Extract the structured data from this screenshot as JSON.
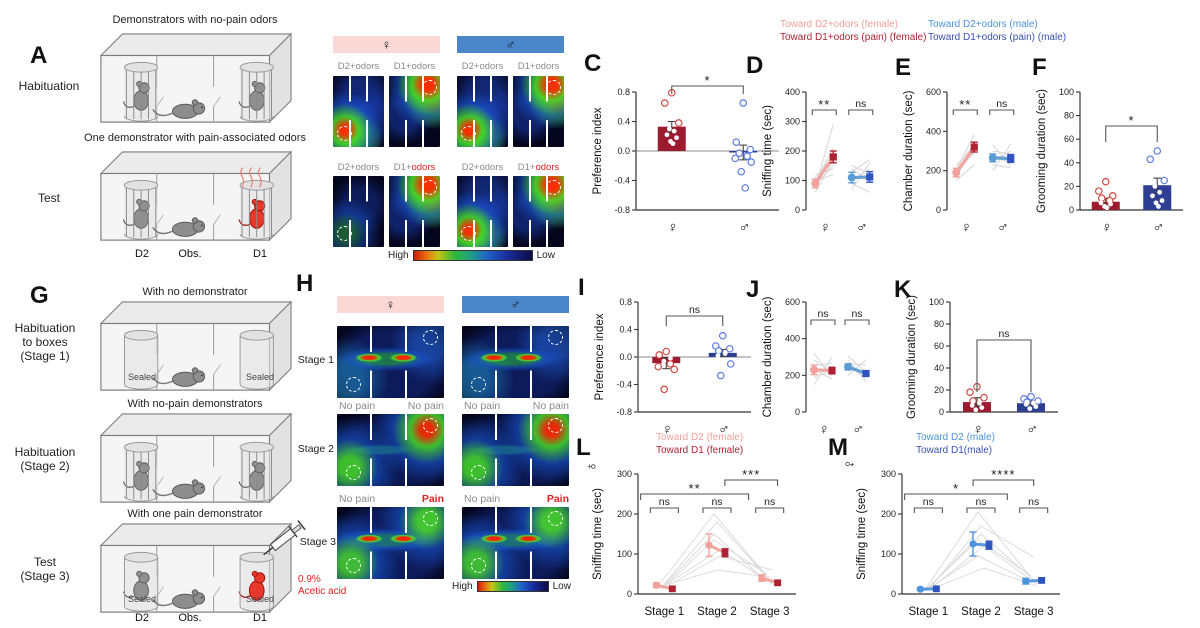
{
  "letters": {
    "A": "A",
    "B": "B",
    "C": "C",
    "D": "D",
    "E": "E",
    "F": "F",
    "G": "G",
    "H": "H",
    "I": "I",
    "J": "J",
    "K": "K",
    "L": "L",
    "M": "M"
  },
  "panelA": {
    "caption_top": "Demonstrators with no-pain odors",
    "label_top": "Habituation",
    "caption_bottom": "One demonstrator with pain-associated odors",
    "label_bottom": "Test",
    "chambers": [
      "D2",
      "Obs.",
      "D1"
    ]
  },
  "panelB": {
    "female": "♀",
    "male": "♂",
    "top_labels": [
      "D2+odors",
      "D1+odors",
      "D2+odors",
      "D1+odors"
    ],
    "bottom_labels": [
      {
        "pre": "D2+odors",
        "red": ""
      },
      {
        "pre": "D1+",
        "red": "odors"
      },
      {
        "pre": "D2+odors",
        "red": ""
      },
      {
        "pre": "D1+",
        "red": "odors"
      }
    ],
    "high": "High",
    "low": "Low"
  },
  "panelG": {
    "captions": [
      "With no demonstrator",
      "With no-pain demonstrators",
      "With one pain demonstrator"
    ],
    "label1": [
      "Habituation",
      "to boxes",
      "(Stage 1)"
    ],
    "label2": [
      "Habituation",
      "(Stage 2)"
    ],
    "label3": [
      "Test",
      "(Stage 3)"
    ],
    "sealed": "Sealed",
    "acid1": "0.9%",
    "acid2": "Acetic acid",
    "chambers": [
      "D2",
      "Obs.",
      "D1"
    ]
  },
  "panelH": {
    "female": "♀",
    "male": "♂",
    "stage_labels": [
      "Stage 1",
      "Stage 2",
      "Stage 3"
    ],
    "mid_labels": [
      "No pain",
      "No pain",
      "No pain",
      "No pain"
    ],
    "bottom_labels": [
      {
        "t": "No pain"
      },
      {
        "t": "Pain"
      },
      {
        "t": "No pain"
      },
      {
        "t": "Pain"
      }
    ],
    "high": "High",
    "low": "Low"
  },
  "legend_top": {
    "female": [
      {
        "text": "Toward D2+odors (female)",
        "color": "#f2a09a"
      },
      {
        "text": "Toward D1+odors (pain) (female)",
        "color": "#b02333"
      }
    ],
    "male": [
      {
        "text": "Toward D2+odors (male)",
        "color": "#4d94dd"
      },
      {
        "text": "Toward D1+odors (pain) (male)",
        "color": "#3a53b4"
      }
    ]
  },
  "legend_L": [
    {
      "text": "Toward D2 (female)",
      "color": "#f2a09a"
    },
    {
      "text": "Toward D1 (female)",
      "color": "#b02333"
    }
  ],
  "legend_M": [
    {
      "text": "Toward D2 (male)",
      "color": "#4d94dd"
    },
    {
      "text": "Toward D1(male)",
      "color": "#3a53b4"
    }
  ],
  "rotated_female": "♀",
  "rotated_male": "♂",
  "chart_data": [
    {
      "panel": "C",
      "type": "bar",
      "ylabel": "Preference index",
      "ylim": [
        -0.8,
        0.8
      ],
      "yticks": [
        0.8,
        0.4,
        0,
        -0.4,
        -0.8
      ],
      "groups": [
        {
          "label": "♀",
          "bar": 0.33,
          "err": 0.07,
          "bar_color": "#9c1b2e",
          "point_color": "#cf4a44",
          "points": [
            0.79,
            0.65,
            0.38,
            0.3,
            0.27,
            0.22,
            0.18,
            0.13,
            0.1
          ]
        },
        {
          "label": "♂",
          "bar": -0.02,
          "err": 0.1,
          "bar_color": "#2e3f93",
          "point_color": "#5b7be0",
          "points": [
            0.65,
            0.12,
            0.02,
            -0.03,
            -0.07,
            -0.1,
            -0.15,
            -0.28,
            -0.5
          ]
        }
      ],
      "sig": [
        {
          "label": "*",
          "from": 0,
          "to": 1,
          "y": -6,
          "drop": 8
        }
      ]
    },
    {
      "panel": "D",
      "type": "paired",
      "ylabel": "Sniffing time (sec)",
      "ylim": [
        0,
        400
      ],
      "yticks": [
        0,
        100,
        200,
        300,
        400
      ],
      "groups": [
        {
          "label": "♀",
          "sig": "**",
          "a": {
            "v": 90,
            "e": 15,
            "color": "#f2a09a"
          },
          "b": {
            "v": 180,
            "e": 20,
            "color": "#b02233"
          },
          "individuals": [
            [
              60,
              170
            ],
            [
              75,
              290
            ],
            [
              85,
              150
            ],
            [
              95,
              210
            ],
            [
              100,
              120
            ],
            [
              110,
              185
            ],
            [
              120,
              140
            ]
          ]
        },
        {
          "label": "♂",
          "sig": "ns",
          "a": {
            "v": 110,
            "e": 18,
            "color": "#5b9bd5"
          },
          "b": {
            "v": 112,
            "e": 18,
            "color": "#2f54c0"
          },
          "individuals": [
            [
              70,
              160
            ],
            [
              90,
              60
            ],
            [
              100,
              140
            ],
            [
              115,
              100
            ],
            [
              130,
              170
            ],
            [
              140,
              95
            ],
            [
              150,
              125
            ]
          ]
        }
      ]
    },
    {
      "panel": "E",
      "type": "paired",
      "ylabel": "Chamber duration (sec)",
      "ylim": [
        0,
        600
      ],
      "yticks": [
        0,
        200,
        400,
        600
      ],
      "groups": [
        {
          "label": "♀",
          "sig": "**",
          "a": {
            "v": 190,
            "e": 22,
            "color": "#f2a09a"
          },
          "b": {
            "v": 320,
            "e": 25,
            "color": "#b02233"
          },
          "individuals": [
            [
              150,
              230
            ],
            [
              165,
              345
            ],
            [
              180,
              300
            ],
            [
              200,
              385
            ],
            [
              210,
              290
            ],
            [
              225,
              330
            ]
          ]
        },
        {
          "label": "♂",
          "sig": "ns",
          "a": {
            "v": 265,
            "e": 20,
            "color": "#5b9bd5"
          },
          "b": {
            "v": 262,
            "e": 20,
            "color": "#2f54c0"
          },
          "individuals": [
            [
              200,
              335
            ],
            [
              230,
              215
            ],
            [
              250,
              300
            ],
            [
              270,
              240
            ],
            [
              300,
              285
            ],
            [
              330,
              225
            ]
          ]
        }
      ]
    },
    {
      "panel": "F",
      "type": "bar",
      "ylabel": "Grooming duration (sec)",
      "ylim": [
        0,
        100
      ],
      "yticks": [
        0,
        20,
        40,
        60,
        80,
        100
      ],
      "groups": [
        {
          "label": "♀",
          "bar": 7,
          "err": 3,
          "bar_color": "#9c1b2e",
          "point_color": "#cf4a44",
          "points": [
            24,
            16,
            12,
            10,
            8,
            6,
            5,
            3,
            2
          ]
        },
        {
          "label": "♂",
          "bar": 21,
          "err": 6,
          "bar_color": "#2e3f93",
          "point_color": "#5b7be0",
          "points": [
            50,
            43,
            25,
            20,
            15,
            12,
            8,
            6,
            3
          ]
        }
      ],
      "sig": [
        {
          "label": "*",
          "from": 0,
          "to": 1,
          "y": 34,
          "drop": 16
        }
      ]
    },
    {
      "panel": "I",
      "type": "bar",
      "ylabel": "Preference index",
      "ylim": [
        -0.8,
        0.8
      ],
      "yticks": [
        0.8,
        0.4,
        0,
        -0.4,
        -0.8
      ],
      "groups": [
        {
          "label": "♀",
          "bar": -0.09,
          "err": 0.08,
          "bar_color": "#9c1b2e",
          "point_color": "#cf4a44",
          "points": [
            0.08,
            0.03,
            -0.02,
            -0.06,
            -0.1,
            -0.14,
            -0.18,
            -0.47
          ]
        },
        {
          "label": "♂",
          "bar": 0.06,
          "err": 0.05,
          "bar_color": "#2e3f93",
          "point_color": "#5b7be0",
          "points": [
            0.31,
            0.16,
            0.12,
            0.09,
            0.05,
            0.02,
            -0.1,
            -0.27
          ]
        }
      ],
      "sig": [
        {
          "label": "ns",
          "from": 0,
          "to": 1,
          "y": 14,
          "drop": 10
        }
      ]
    },
    {
      "panel": "J",
      "type": "paired",
      "ylabel": "Chamber duration (sec)",
      "ylim": [
        0,
        600
      ],
      "yticks": [
        0,
        200,
        400,
        600
      ],
      "groups": [
        {
          "label": "♀",
          "sig": "ns",
          "a": {
            "v": 230,
            "e": 26,
            "color": "#f2a09a"
          },
          "b": {
            "v": 226,
            "e": 18,
            "color": "#b02233"
          },
          "individuals": [
            [
              150,
              300
            ],
            [
              190,
              225
            ],
            [
              230,
              180
            ],
            [
              255,
              265
            ],
            [
              285,
              210
            ],
            [
              320,
              195
            ]
          ]
        },
        {
          "label": "♂",
          "sig": "ns",
          "a": {
            "v": 246,
            "e": 16,
            "color": "#5b9bd5"
          },
          "b": {
            "v": 210,
            "e": 14,
            "color": "#2f54c0"
          },
          "individuals": [
            [
              200,
              285
            ],
            [
              230,
              225
            ],
            [
              250,
              185
            ],
            [
              265,
              255
            ],
            [
              285,
              165
            ],
            [
              305,
              215
            ]
          ]
        }
      ]
    },
    {
      "panel": "K",
      "type": "bar",
      "ylabel": "Grooming duration (sec)",
      "ylim": [
        0,
        100
      ],
      "yticks": [
        0,
        20,
        40,
        60,
        80,
        100
      ],
      "groups": [
        {
          "label": "♀",
          "bar": 9,
          "err": 4,
          "bar_color": "#9c1b2e",
          "point_color": "#cf4a44",
          "points": [
            23,
            18,
            13,
            10,
            8,
            6,
            4,
            2
          ]
        },
        {
          "label": "♂",
          "bar": 8,
          "err": 2,
          "bar_color": "#2e3f93",
          "point_color": "#5b7be0",
          "points": [
            14,
            12,
            10,
            9,
            8,
            7,
            5,
            3
          ]
        }
      ],
      "sig": [
        {
          "label": "ns",
          "from": 0,
          "to": 1,
          "y": 38,
          "drop": 52
        }
      ]
    },
    {
      "panel": "L",
      "type": "stages",
      "ylabel": "Sniffing time (sec)",
      "ylim": [
        0,
        300
      ],
      "yticks": [
        0,
        100,
        200,
        300
      ],
      "categories": [
        "Stage 1",
        "Stage 2",
        "Stage 3"
      ],
      "series": [
        {
          "name": "Toward D2 (female)",
          "color": "#f2a09a",
          "values": [
            22,
            122,
            40
          ],
          "errs": [
            6,
            28,
            8
          ]
        },
        {
          "name": "Toward D1 (female)",
          "color": "#b02233",
          "values": [
            13,
            103,
            28
          ],
          "errs": [
            4,
            10,
            5
          ]
        }
      ],
      "individuals": [
        [
          30,
          200,
          45
        ],
        [
          25,
          180,
          35
        ],
        [
          20,
          95,
          60
        ],
        [
          15,
          150,
          30
        ],
        [
          22,
          60,
          42
        ],
        [
          26,
          110,
          25
        ],
        [
          12,
          135,
          50
        ]
      ],
      "sig_within": [
        "ns",
        "ns",
        "ns"
      ],
      "sig_across": [
        {
          "label": "**",
          "from": -0.45,
          "to": 1.6,
          "y": 20
        },
        {
          "label": "***",
          "from": 1.15,
          "to": 2.15,
          "y": 6
        }
      ]
    },
    {
      "panel": "M",
      "type": "stages",
      "ylabel": "Sniffing time (sec)",
      "ylim": [
        0,
        300
      ],
      "yticks": [
        0,
        100,
        200,
        300
      ],
      "categories": [
        "Stage 1",
        "Stage 2",
        "Stage 3"
      ],
      "series": [
        {
          "name": "Toward D2 (male)",
          "color": "#4d94dd",
          "values": [
            12,
            125,
            32
          ],
          "errs": [
            3,
            30,
            7
          ]
        },
        {
          "name": "Toward D1(male)",
          "color": "#2f54c0",
          "values": [
            13,
            122,
            34
          ],
          "errs": [
            3,
            10,
            6
          ]
        }
      ],
      "individuals": [
        [
          12,
          205,
          42
        ],
        [
          10,
          170,
          92
        ],
        [
          15,
          120,
          25
        ],
        [
          8,
          95,
          30
        ],
        [
          14,
          150,
          36
        ],
        [
          12,
          65,
          20
        ],
        [
          10,
          135,
          46
        ]
      ],
      "sig_within": [
        "ns",
        "ns",
        "ns"
      ],
      "sig_across": [
        {
          "label": "*",
          "from": -0.45,
          "to": 1.5,
          "y": 20
        },
        {
          "label": "****",
          "from": 0.85,
          "to": 2.0,
          "y": 6
        }
      ]
    }
  ]
}
